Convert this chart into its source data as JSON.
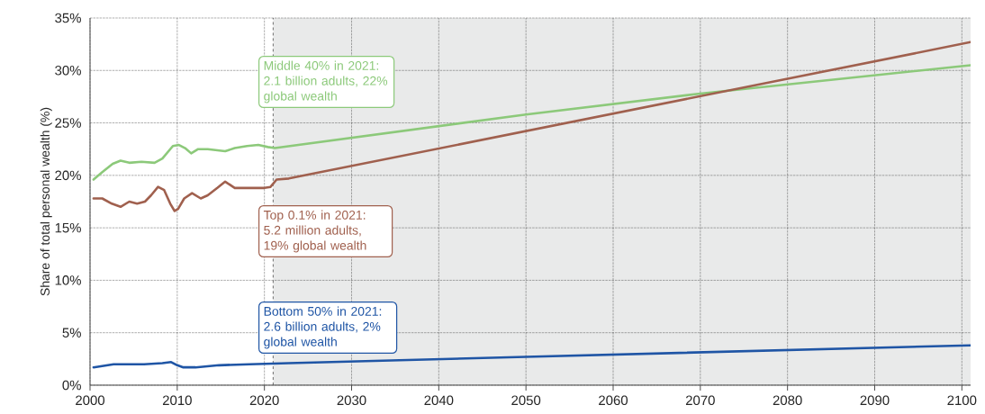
{
  "chart_data": {
    "type": "line",
    "ylabel": "Share of total personal wealth (%)",
    "xlim": [
      2000,
      2101
    ],
    "ylim": [
      0,
      35
    ],
    "xticks": [
      2000,
      2010,
      2020,
      2030,
      2040,
      2050,
      2060,
      2070,
      2080,
      2090,
      2100
    ],
    "yticks": [
      {
        "value": 0,
        "label": "0%"
      },
      {
        "value": 5,
        "label": "5%"
      },
      {
        "value": 10,
        "label": "10%"
      },
      {
        "value": 15,
        "label": "15%"
      },
      {
        "value": 20,
        "label": "20%"
      },
      {
        "value": 25,
        "label": "25%"
      },
      {
        "value": 30,
        "label": "30%"
      },
      {
        "value": 35,
        "label": "35%"
      }
    ],
    "grid": true,
    "marker": "none",
    "line_style": "solid",
    "ref_lines": [
      {
        "axis": "x",
        "value": 2021,
        "color": "#4c4c4c",
        "line_style": "dashed"
      }
    ],
    "bands": [
      {
        "axis": "x",
        "from": 2021,
        "to": 2101,
        "color": "#e9eaea"
      }
    ],
    "series": [
      {
        "color": "#8cc97a",
        "x": [
          2000.4,
          2001.4,
          2002.6,
          2003.5,
          2004.5,
          2005.9,
          2007.4,
          2008.3,
          2009.5,
          2010.2,
          2010.9,
          2011.6,
          2012.4,
          2013.5,
          2015.5,
          2016.6,
          2018.0,
          2019.3,
          2020.4,
          2021.2,
          2050,
          2070,
          2101
        ],
        "values": [
          19.6,
          20.3,
          21.1,
          21.4,
          21.2,
          21.3,
          21.2,
          21.6,
          22.8,
          22.9,
          22.6,
          22.1,
          22.5,
          22.5,
          22.3,
          22.6,
          22.8,
          22.9,
          22.7,
          22.6,
          25.8,
          27.8,
          30.5
        ]
      },
      {
        "color": "#a0604e",
        "x": [
          2000.4,
          2001.4,
          2002.5,
          2003.5,
          2004.5,
          2005.4,
          2006.3,
          2007.0,
          2007.8,
          2008.5,
          2009.2,
          2009.7,
          2010.1,
          2010.8,
          2011.7,
          2012.7,
          2013.5,
          2014.6,
          2015.5,
          2016.6,
          2018.0,
          2020.0,
          2020.7,
          2021.4,
          2022.8,
          2101
        ],
        "values": [
          17.8,
          17.8,
          17.3,
          17.0,
          17.5,
          17.3,
          17.5,
          18.1,
          18.9,
          18.6,
          17.3,
          16.6,
          16.8,
          17.8,
          18.3,
          17.8,
          18.1,
          18.8,
          19.4,
          18.8,
          18.8,
          18.8,
          18.9,
          19.6,
          19.7,
          32.7
        ]
      },
      {
        "color": "#1f55a5",
        "x": [
          2000.4,
          2002.7,
          2006.2,
          2008.3,
          2009.3,
          2010.0,
          2010.7,
          2012.1,
          2014.8,
          2018.3,
          2022.8,
          2050,
          2101
        ],
        "values": [
          1.7,
          2.0,
          2.0,
          2.1,
          2.2,
          1.9,
          1.7,
          1.7,
          1.9,
          2.0,
          2.1,
          2.7,
          3.8
        ]
      }
    ],
    "annotations": [
      "Middle 40% in 2021: 2.1 billion adults, 22% global wealth",
      "Top 0.1% in 2021: 5.2 million adults, 19% global wealth",
      "Bottom 50% in 2021: 2.6 billion adults, 2% global wealth"
    ]
  }
}
